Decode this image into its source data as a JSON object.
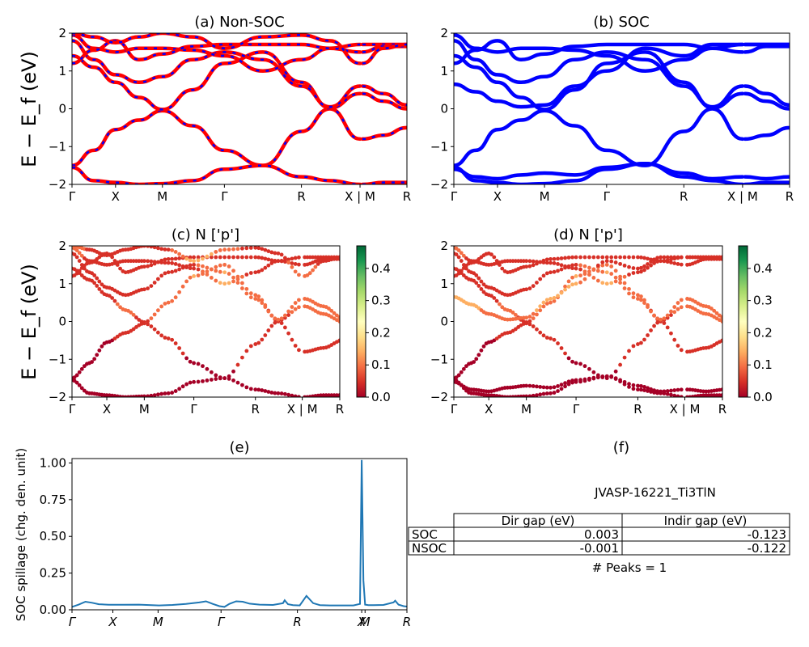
{
  "chart_data": [
    {
      "panel": "a",
      "type": "line",
      "title": "(a) Non-SOC",
      "ylabel": "E − E_f (eV)",
      "ylim": [
        -2,
        2
      ],
      "yticks": [
        "−2",
        "−1",
        "0",
        "1",
        "2"
      ],
      "kpoints": [
        "Γ",
        "X",
        "M",
        "Γ",
        "R",
        "X | M",
        "R"
      ],
      "style": {
        "color": "#ff0000",
        "dash_color": "#0000ff"
      },
      "bands": [
        [
          -1.5,
          -1.1,
          -0.55,
          -0.3,
          -0.05,
          -0.45,
          -1.1,
          -1.5,
          -0.6,
          0.0,
          -0.8,
          -0.7,
          -0.5
        ],
        [
          -1.55,
          -1.9,
          -1.95,
          -2.0,
          -1.98,
          -1.9,
          -1.6,
          -1.5,
          -1.8,
          -1.9,
          -2.0,
          -1.95,
          -1.95
        ],
        [
          1.4,
          1.1,
          0.7,
          0.3,
          -0.02,
          0.5,
          1.2,
          1.5,
          0.7,
          0.02,
          0.4,
          0.2,
          0.0
        ],
        [
          1.8,
          1.3,
          0.9,
          0.7,
          0.85,
          1.3,
          1.5,
          1.3,
          0.6,
          0.05,
          0.6,
          0.4,
          0.1
        ],
        [
          1.95,
          1.6,
          1.5,
          1.6,
          1.6,
          1.55,
          1.4,
          1.0,
          1.3,
          1.6,
          1.7,
          1.7,
          1.7
        ],
        [
          1.2,
          1.55,
          1.8,
          1.3,
          1.45,
          1.65,
          1.7,
          1.7,
          1.7,
          1.6,
          1.5,
          1.65,
          1.65
        ],
        [
          2.0,
          1.9,
          1.75,
          1.9,
          2.0,
          1.9,
          1.6,
          1.9,
          1.95,
          1.8,
          1.2,
          1.6,
          1.7
        ]
      ]
    },
    {
      "panel": "b",
      "type": "line",
      "title": "(b) SOC",
      "ylim": [
        -2,
        2
      ],
      "yticks": [
        "−2",
        "−1",
        "0",
        "1",
        "2"
      ],
      "kpoints": [
        "Γ",
        "X",
        "M",
        "Γ",
        "R",
        "X | M",
        "R"
      ],
      "style": {
        "color": "#0000ff"
      },
      "bands": [
        [
          -1.5,
          -1.1,
          -0.55,
          -0.3,
          -0.05,
          -0.45,
          -1.1,
          -1.5,
          -0.6,
          0.0,
          -0.8,
          -0.7,
          -0.5
        ],
        [
          -1.55,
          -1.9,
          -1.95,
          -2.0,
          -1.98,
          -1.9,
          -1.6,
          -1.45,
          -1.8,
          -1.9,
          -2.0,
          -1.95,
          -1.95
        ],
        [
          -1.6,
          -1.8,
          -1.85,
          -1.75,
          -1.7,
          -1.75,
          -1.55,
          -1.45,
          -1.7,
          -1.85,
          -1.8,
          -1.85,
          -1.8
        ],
        [
          1.4,
          1.1,
          0.7,
          0.3,
          -0.02,
          0.5,
          1.2,
          1.5,
          0.7,
          0.02,
          0.4,
          0.2,
          0.0
        ],
        [
          1.8,
          1.3,
          0.9,
          0.7,
          0.85,
          1.3,
          1.5,
          1.3,
          0.6,
          0.05,
          0.6,
          0.4,
          0.1
        ],
        [
          0.65,
          0.45,
          0.2,
          0.05,
          0.1,
          0.6,
          1.0,
          1.6,
          1.4,
          1.7,
          1.7,
          1.7,
          1.7
        ],
        [
          1.95,
          1.6,
          1.5,
          1.6,
          1.6,
          1.55,
          1.4,
          1.0,
          1.3,
          1.6,
          1.7,
          1.7,
          1.7
        ],
        [
          1.2,
          1.55,
          1.8,
          1.3,
          1.45,
          1.65,
          1.7,
          1.7,
          1.7,
          1.6,
          1.5,
          1.65,
          1.65
        ]
      ]
    },
    {
      "panel": "c",
      "type": "scatter",
      "title": "(c)  N ['p']",
      "ylabel": "E − E_f (eV)",
      "ylim": [
        -2,
        2
      ],
      "yticks": [
        "−2",
        "−1",
        "0",
        "1",
        "2"
      ],
      "kpoints": [
        "Γ",
        "X",
        "M",
        "Γ",
        "R",
        "X | M",
        "R"
      ],
      "colorbar": {
        "colormap": "RdYlGn",
        "range": [
          0,
          0.47
        ],
        "ticks": [
          "0.0",
          "0.1",
          "0.2",
          "0.3",
          "0.4"
        ]
      },
      "bands": [
        {
          "energy": [
            -1.5,
            -1.1,
            -0.55,
            -0.3,
            -0.05,
            -0.45,
            -1.1,
            -1.5,
            -0.6,
            0.0,
            -0.8,
            -0.7,
            -0.5
          ],
          "weight": [
            0.02,
            0.02,
            0.02,
            0.03,
            0.03,
            0.03,
            0.02,
            0.02,
            0.03,
            0.04,
            0.03,
            0.03,
            0.03
          ]
        },
        {
          "energy": [
            -1.55,
            -1.9,
            -1.95,
            -2.0,
            -1.98,
            -1.9,
            -1.6,
            -1.5,
            -1.8,
            -1.9,
            -2.0,
            -1.95,
            -1.95
          ],
          "weight": [
            0.02,
            0.02,
            0.02,
            0.02,
            0.02,
            0.02,
            0.02,
            0.02,
            0.02,
            0.02,
            0.02,
            0.02,
            0.02
          ]
        },
        {
          "energy": [
            1.4,
            1.1,
            0.7,
            0.3,
            -0.02,
            0.5,
            1.2,
            1.5,
            0.7,
            0.02,
            0.4,
            0.2,
            0.0
          ],
          "weight": [
            0.04,
            0.05,
            0.06,
            0.08,
            0.06,
            0.1,
            0.12,
            0.1,
            0.08,
            0.06,
            0.08,
            0.1,
            0.09
          ]
        },
        {
          "energy": [
            1.8,
            1.3,
            0.9,
            0.7,
            0.85,
            1.3,
            1.5,
            1.3,
            0.6,
            0.05,
            0.6,
            0.4,
            0.1
          ],
          "weight": [
            0.03,
            0.04,
            0.05,
            0.06,
            0.05,
            0.06,
            0.07,
            0.12,
            0.1,
            0.08,
            0.1,
            0.1,
            0.08
          ]
        },
        {
          "energy": [
            1.95,
            1.6,
            1.5,
            1.6,
            1.6,
            1.55,
            1.4,
            1.0,
            1.3,
            1.6,
            1.7,
            1.7,
            1.7
          ],
          "weight": [
            0.1,
            0.05,
            0.03,
            0.03,
            0.03,
            0.03,
            0.05,
            0.14,
            0.04,
            0.03,
            0.03,
            0.03,
            0.03
          ]
        },
        {
          "energy": [
            1.2,
            1.55,
            1.8,
            1.3,
            1.45,
            1.65,
            1.7,
            1.7,
            1.7,
            1.6,
            1.5,
            1.65,
            1.65
          ],
          "weight": [
            0.05,
            0.04,
            0.03,
            0.03,
            0.03,
            0.03,
            0.03,
            0.05,
            0.03,
            0.03,
            0.06,
            0.03,
            0.03
          ]
        },
        {
          "energy": [
            2.0,
            1.9,
            1.75,
            1.9,
            2.0,
            1.9,
            1.6,
            1.9,
            1.95,
            1.8,
            1.2,
            1.6,
            1.7
          ],
          "weight": [
            0.12,
            0.06,
            0.04,
            0.03,
            0.03,
            0.06,
            0.15,
            0.1,
            0.04,
            0.05,
            0.1,
            0.05,
            0.04
          ]
        }
      ]
    },
    {
      "panel": "d",
      "type": "scatter",
      "title": "(d) N ['p']",
      "ylim": [
        -2,
        2
      ],
      "yticks": [
        "−2",
        "−1",
        "0",
        "1",
        "2"
      ],
      "kpoints": [
        "Γ",
        "X",
        "M",
        "Γ",
        "R",
        "X | M",
        "R"
      ],
      "colorbar": {
        "colormap": "RdYlGn",
        "range": [
          0,
          0.47
        ],
        "ticks": [
          "0.0",
          "0.1",
          "0.2",
          "0.3",
          "0.4"
        ]
      },
      "bands": [
        {
          "energy": [
            -1.5,
            -1.1,
            -0.55,
            -0.3,
            -0.05,
            -0.45,
            -1.1,
            -1.5,
            -0.6,
            0.0,
            -0.8,
            -0.7,
            -0.5
          ],
          "weight": [
            0.02,
            0.02,
            0.02,
            0.03,
            0.03,
            0.03,
            0.02,
            0.02,
            0.03,
            0.04,
            0.03,
            0.03,
            0.03
          ]
        },
        {
          "energy": [
            -1.55,
            -1.9,
            -1.95,
            -2.0,
            -1.98,
            -1.9,
            -1.6,
            -1.45,
            -1.8,
            -1.9,
            -2.0,
            -1.95,
            -1.95
          ],
          "weight": [
            0.02,
            0.02,
            0.02,
            0.02,
            0.02,
            0.02,
            0.02,
            0.02,
            0.02,
            0.02,
            0.02,
            0.02,
            0.02
          ]
        },
        {
          "energy": [
            -1.6,
            -1.8,
            -1.85,
            -1.75,
            -1.7,
            -1.75,
            -1.55,
            -1.45,
            -1.7,
            -1.85,
            -1.8,
            -1.85,
            -1.8
          ],
          "weight": [
            0.02,
            0.02,
            0.02,
            0.02,
            0.02,
            0.02,
            0.02,
            0.02,
            0.02,
            0.02,
            0.02,
            0.02,
            0.02
          ]
        },
        {
          "energy": [
            1.4,
            1.1,
            0.7,
            0.3,
            -0.02,
            0.5,
            1.2,
            1.5,
            0.7,
            0.02,
            0.4,
            0.2,
            0.0
          ],
          "weight": [
            0.04,
            0.05,
            0.06,
            0.08,
            0.06,
            0.1,
            0.12,
            0.1,
            0.08,
            0.06,
            0.08,
            0.1,
            0.09
          ]
        },
        {
          "energy": [
            1.8,
            1.3,
            0.9,
            0.7,
            0.85,
            1.3,
            1.5,
            1.3,
            0.6,
            0.05,
            0.6,
            0.4,
            0.1
          ],
          "weight": [
            0.03,
            0.04,
            0.05,
            0.06,
            0.05,
            0.06,
            0.07,
            0.12,
            0.1,
            0.08,
            0.1,
            0.1,
            0.08
          ]
        },
        {
          "energy": [
            0.65,
            0.45,
            0.2,
            0.05,
            0.1,
            0.6,
            1.0,
            1.6,
            1.4,
            1.7,
            1.7,
            1.7,
            1.7
          ],
          "weight": [
            0.12,
            0.14,
            0.1,
            0.08,
            0.1,
            0.16,
            0.12,
            0.05,
            0.04,
            0.03,
            0.03,
            0.03,
            0.03
          ]
        },
        {
          "energy": [
            1.95,
            1.6,
            1.5,
            1.6,
            1.6,
            1.55,
            1.4,
            1.0,
            1.3,
            1.6,
            1.7,
            1.7,
            1.7
          ],
          "weight": [
            0.1,
            0.05,
            0.03,
            0.03,
            0.03,
            0.03,
            0.05,
            0.14,
            0.04,
            0.03,
            0.03,
            0.03,
            0.03
          ]
        },
        {
          "energy": [
            1.2,
            1.55,
            1.8,
            1.3,
            1.45,
            1.65,
            1.7,
            1.7,
            1.7,
            1.6,
            1.5,
            1.65,
            1.65
          ],
          "weight": [
            0.05,
            0.04,
            0.03,
            0.03,
            0.03,
            0.03,
            0.03,
            0.05,
            0.03,
            0.03,
            0.06,
            0.03,
            0.03
          ]
        }
      ]
    },
    {
      "panel": "e",
      "type": "line",
      "title": "(e)",
      "ylabel": "SOC spillage (chg. den. unit)",
      "ylim": [
        0,
        1.03
      ],
      "yticks": [
        "0.00",
        "0.25",
        "0.50",
        "0.75",
        "1.00"
      ],
      "kpoints": [
        "Γ",
        "X",
        "M",
        "Γ",
        "R",
        "X",
        "M",
        "R"
      ],
      "series": [
        {
          "color": "#1f77b4",
          "x": [
            0,
            0.02,
            0.04,
            0.06,
            0.08,
            0.11,
            0.15,
            0.2,
            0.26,
            0.3,
            0.34,
            0.38,
            0.4,
            0.42,
            0.44,
            0.455,
            0.47,
            0.49,
            0.51,
            0.53,
            0.56,
            0.6,
            0.63,
            0.635,
            0.645,
            0.66,
            0.68,
            0.7,
            0.72,
            0.74,
            0.77,
            0.8,
            0.84,
            0.86,
            0.865,
            0.87,
            0.875,
            0.885,
            0.9,
            0.93,
            0.96,
            0.965,
            0.975,
            0.99,
            1.0
          ],
          "y": [
            0.02,
            0.035,
            0.055,
            0.048,
            0.038,
            0.034,
            0.034,
            0.035,
            0.03,
            0.033,
            0.04,
            0.05,
            0.058,
            0.04,
            0.025,
            0.02,
            0.04,
            0.058,
            0.055,
            0.042,
            0.035,
            0.033,
            0.045,
            0.065,
            0.038,
            0.032,
            0.03,
            0.095,
            0.045,
            0.032,
            0.03,
            0.03,
            0.03,
            0.04,
            1.02,
            0.2,
            0.035,
            0.032,
            0.032,
            0.033,
            0.05,
            0.062,
            0.035,
            0.025,
            0.022
          ]
        }
      ]
    }
  ],
  "table_panel": {
    "title": "(f)",
    "material": "JVASP-16221_Ti3TlN",
    "columns": [
      "Dir gap (eV)",
      "Indir gap (eV)"
    ],
    "rows": [
      {
        "label": "SOC",
        "dir": "0.003",
        "indir": "-0.123"
      },
      {
        "label": "NSOC",
        "dir": "-0.001",
        "indir": "-0.122"
      }
    ],
    "peaks": "# Peaks = 1"
  }
}
